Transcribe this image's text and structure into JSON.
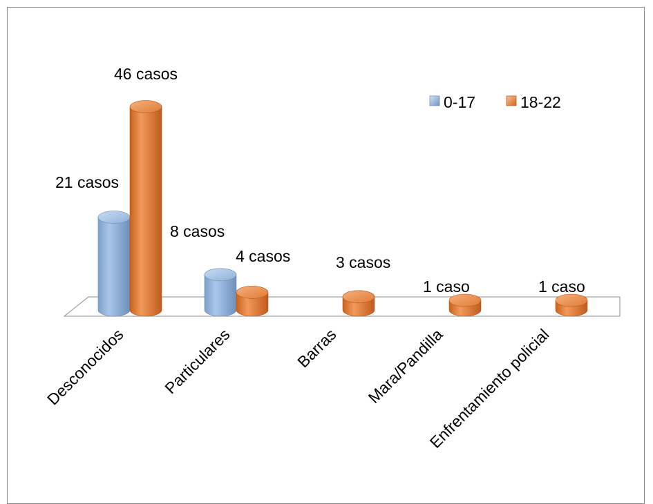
{
  "chart_data": {
    "type": "bar",
    "style": "3d-cylinder",
    "categories": [
      "Desconocidos",
      "Particulares",
      "Barras",
      "Mara/Pandilla",
      "Enfrentamiento policial"
    ],
    "series": [
      {
        "name": "0-17",
        "color": "#8fb3dd",
        "values": [
          21,
          8,
          0,
          0,
          0
        ],
        "labels": [
          "21 casos",
          "",
          "",
          "",
          ""
        ]
      },
      {
        "name": "18-22",
        "color": "#e07b3c",
        "values": [
          46,
          4,
          3,
          1,
          1
        ],
        "labels": [
          "46 casos",
          "4 casos",
          "3 casos",
          "1 caso",
          "1 caso"
        ]
      }
    ],
    "extra_labels": {
      "particulares_0_17": "8 casos"
    },
    "ylim": [
      0,
      50
    ],
    "grid": false,
    "legend_position": "top-right",
    "title": "",
    "xlabel": "",
    "ylabel": ""
  }
}
